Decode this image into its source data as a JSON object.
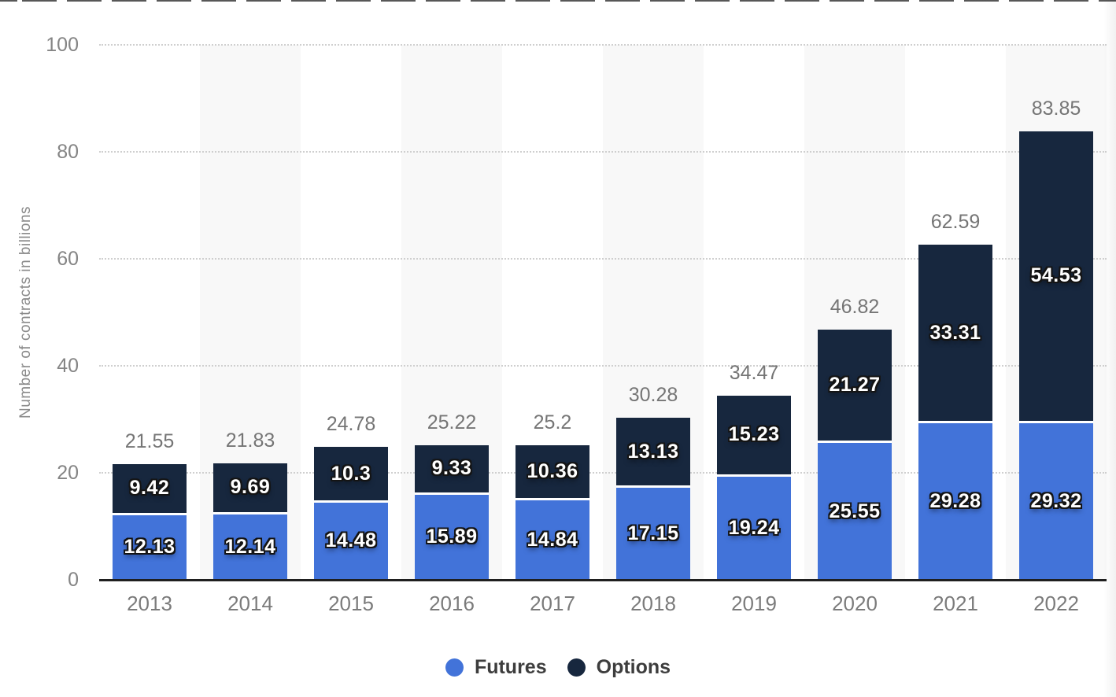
{
  "chart_data": {
    "type": "bar",
    "stacked": true,
    "categories": [
      "2013",
      "2014",
      "2015",
      "2016",
      "2017",
      "2018",
      "2019",
      "2020",
      "2021",
      "2022"
    ],
    "series": [
      {
        "name": "Futures",
        "color": "#4273d9",
        "values": [
          12.13,
          12.14,
          14.48,
          15.89,
          14.84,
          17.15,
          19.24,
          25.55,
          29.28,
          29.32
        ]
      },
      {
        "name": "Options",
        "color": "#17273e",
        "values": [
          9.42,
          9.69,
          10.3,
          9.33,
          10.36,
          13.13,
          15.23,
          21.27,
          33.31,
          54.53
        ]
      }
    ],
    "totals": [
      21.55,
      21.83,
      24.78,
      25.22,
      25.2,
      30.28,
      34.47,
      46.82,
      62.59,
      83.85
    ],
    "xlabel": "",
    "ylabel": "Number of contracts in billions",
    "ylim": [
      0,
      100
    ],
    "yticks": [
      0,
      20,
      40,
      60,
      80,
      100
    ],
    "grid": "horizontal-dotted",
    "legend_position": "bottom"
  },
  "legend": {
    "items": [
      {
        "label": "Futures",
        "color": "#4273d9"
      },
      {
        "label": "Options",
        "color": "#17273e"
      }
    ]
  },
  "colors": {
    "axis": "#1f1f1f",
    "grid": "#cfcfcf",
    "y_tick_label": "#858585",
    "x_tick_label": "#7b7b7b",
    "total_label": "#757575",
    "bar_value_label": "#ffffff",
    "legend_text": "#3d3d3d",
    "column_band": "#f8f8f8",
    "background": "#ffffff"
  }
}
